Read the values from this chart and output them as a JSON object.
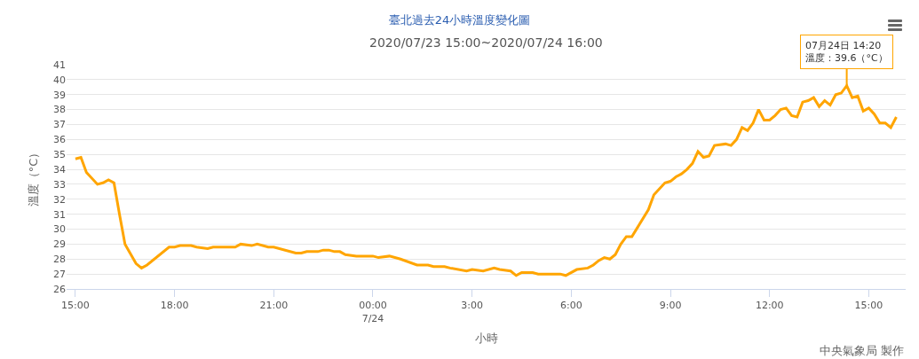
{
  "chart_data": {
    "type": "line",
    "title": "臺北過去24小時溫度變化圖",
    "subtitle": "2020/07/23 15:00~2020/07/24 16:00",
    "xlabel": "小時",
    "ylabel": "溫度（°C）",
    "x": [
      "2020-07-23T15:00",
      "2020-07-23T15:10",
      "2020-07-23T15:20",
      "2020-07-23T15:40",
      "2020-07-23T15:50",
      "2020-07-23T16:00",
      "2020-07-23T16:10",
      "2020-07-23T16:20",
      "2020-07-23T16:30",
      "2020-07-23T16:50",
      "2020-07-23T17:00",
      "2020-07-23T17:10",
      "2020-07-23T17:50",
      "2020-07-23T18:00",
      "2020-07-23T18:10",
      "2020-07-23T18:30",
      "2020-07-23T18:40",
      "2020-07-23T19:00",
      "2020-07-23T19:10",
      "2020-07-23T19:50",
      "2020-07-23T20:00",
      "2020-07-23T20:20",
      "2020-07-23T20:30",
      "2020-07-23T20:50",
      "2020-07-23T21:00",
      "2020-07-23T21:40",
      "2020-07-23T21:50",
      "2020-07-23T22:00",
      "2020-07-23T22:20",
      "2020-07-23T22:30",
      "2020-07-23T22:40",
      "2020-07-23T22:50",
      "2020-07-23T23:00",
      "2020-07-23T23:10",
      "2020-07-23T23:30",
      "2020-07-24T00:00",
      "2020-07-24T00:10",
      "2020-07-24T00:30",
      "2020-07-24T00:50",
      "2020-07-24T01:20",
      "2020-07-24T01:40",
      "2020-07-24T01:50",
      "2020-07-24T02:10",
      "2020-07-24T02:20",
      "2020-07-24T02:50",
      "2020-07-24T03:00",
      "2020-07-24T03:20",
      "2020-07-24T03:40",
      "2020-07-24T03:50",
      "2020-07-24T04:10",
      "2020-07-24T04:20",
      "2020-07-24T04:30",
      "2020-07-24T04:50",
      "2020-07-24T05:00",
      "2020-07-24T05:40",
      "2020-07-24T05:50",
      "2020-07-24T06:10",
      "2020-07-24T06:30",
      "2020-07-24T06:40",
      "2020-07-24T06:50",
      "2020-07-24T07:00",
      "2020-07-24T07:10",
      "2020-07-24T07:20",
      "2020-07-24T07:30",
      "2020-07-24T07:40",
      "2020-07-24T07:50",
      "2020-07-24T08:00",
      "2020-07-24T08:20",
      "2020-07-24T08:30",
      "2020-07-24T08:50",
      "2020-07-24T09:00",
      "2020-07-24T09:10",
      "2020-07-24T09:20",
      "2020-07-24T09:30",
      "2020-07-24T09:40",
      "2020-07-24T09:50",
      "2020-07-24T10:00",
      "2020-07-24T10:10",
      "2020-07-24T10:20",
      "2020-07-24T10:40",
      "2020-07-24T10:50",
      "2020-07-24T11:00",
      "2020-07-24T11:10",
      "2020-07-24T11:20",
      "2020-07-24T11:30",
      "2020-07-24T11:40",
      "2020-07-24T11:50",
      "2020-07-24T12:00",
      "2020-07-24T12:10",
      "2020-07-24T12:20",
      "2020-07-24T12:30",
      "2020-07-24T12:40",
      "2020-07-24T12:50",
      "2020-07-24T13:00",
      "2020-07-24T13:10",
      "2020-07-24T13:20",
      "2020-07-24T13:30",
      "2020-07-24T13:40",
      "2020-07-24T13:50",
      "2020-07-24T14:00",
      "2020-07-24T14:10",
      "2020-07-24T14:20",
      "2020-07-24T14:30",
      "2020-07-24T14:40",
      "2020-07-24T14:50",
      "2020-07-24T15:00",
      "2020-07-24T15:10",
      "2020-07-24T15:20",
      "2020-07-24T15:30",
      "2020-07-24T15:40",
      "2020-07-24T15:50"
    ],
    "series": [
      {
        "color": "#ffa500",
        "values": [
          34.7,
          34.8,
          33.8,
          33.0,
          33.1,
          33.3,
          33.1,
          31.0,
          29.0,
          27.7,
          27.4,
          27.6,
          28.8,
          28.8,
          28.9,
          28.9,
          28.8,
          28.7,
          28.8,
          28.8,
          29.0,
          28.9,
          29.0,
          28.8,
          28.8,
          28.4,
          28.4,
          28.5,
          28.5,
          28.6,
          28.6,
          28.5,
          28.5,
          28.3,
          28.2,
          28.2,
          28.1,
          28.2,
          28.0,
          27.6,
          27.6,
          27.5,
          27.5,
          27.4,
          27.2,
          27.3,
          27.2,
          27.4,
          27.3,
          27.2,
          26.9,
          27.1,
          27.1,
          27.0,
          27.0,
          26.9,
          27.3,
          27.4,
          27.6,
          27.9,
          28.1,
          28.0,
          28.3,
          29.0,
          29.5,
          29.5,
          30.1,
          31.3,
          32.3,
          33.1,
          33.2,
          33.5,
          33.7,
          34.0,
          34.4,
          35.2,
          34.8,
          34.9,
          35.6,
          35.7,
          35.6,
          36.0,
          36.8,
          36.6,
          37.1,
          38.0,
          37.3,
          37.3,
          37.6,
          38.0,
          38.1,
          37.6,
          37.5,
          38.5,
          38.6,
          38.8,
          38.2,
          38.6,
          38.3,
          39.0,
          39.1,
          39.6,
          38.8,
          38.9,
          37.9,
          38.1,
          37.7,
          37.1,
          37.1,
          36.8,
          37.5
        ]
      }
    ],
    "xlim": [
      "2020-07-23T14:44",
      "2020-07-24T16:07"
    ],
    "xticks": [
      {
        "value": "2020-07-23T15:00",
        "label": "15:00"
      },
      {
        "value": "2020-07-23T18:00",
        "label": "18:00"
      },
      {
        "value": "2020-07-23T21:00",
        "label": "21:00"
      },
      {
        "value": "2020-07-24T00:00",
        "label": "00:00\n7/24"
      },
      {
        "value": "2020-07-24T03:00",
        "label": "3:00"
      },
      {
        "value": "2020-07-24T06:00",
        "label": "6:00"
      },
      {
        "value": "2020-07-24T09:00",
        "label": "9:00"
      },
      {
        "value": "2020-07-24T12:00",
        "label": "12:00"
      },
      {
        "value": "2020-07-24T15:00",
        "label": "15:00"
      }
    ],
    "ylim": [
      26,
      41
    ],
    "yticks": [
      26,
      27,
      28,
      29,
      30,
      31,
      32,
      33,
      34,
      35,
      36,
      37,
      38,
      39,
      40,
      41
    ],
    "grid": "y",
    "marker": "none",
    "line_style": "solid",
    "legend": false,
    "annotations": [
      {
        "text": "07月24日 14:20\n溫度：39.6（°C）",
        "x": "2020-07-24T14:20",
        "y": 39.6
      },
      "中央氣象局 製作"
    ]
  }
}
